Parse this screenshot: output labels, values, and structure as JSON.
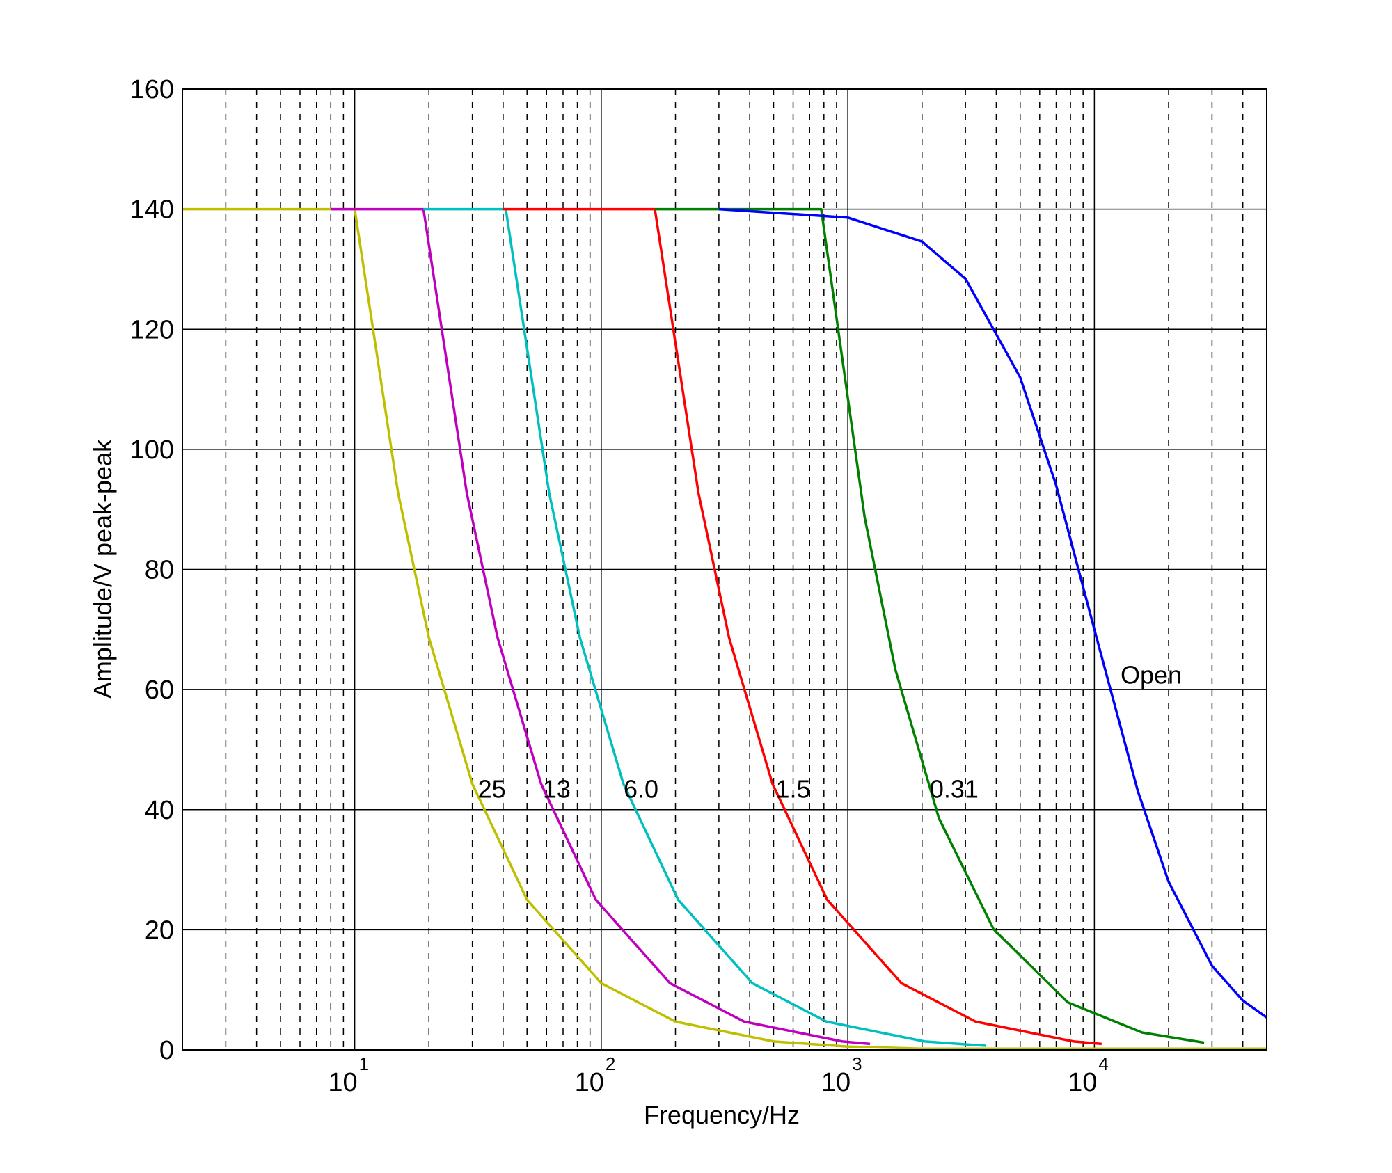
{
  "chart_data": {
    "type": "line",
    "title": "",
    "xlabel": "Frequency/Hz",
    "ylabel": "Amplitude/V peak-peak",
    "xscale": "log",
    "xlim": [
      2,
      50000
    ],
    "ylim": [
      0,
      160
    ],
    "yticks": [
      0,
      20,
      40,
      60,
      80,
      100,
      120,
      140,
      160
    ],
    "xticks": [
      {
        "value": 10,
        "base": "10",
        "exp": "1"
      },
      {
        "value": 100,
        "base": "10",
        "exp": "2"
      },
      {
        "value": 1000,
        "base": "10",
        "exp": "3"
      },
      {
        "value": 10000,
        "base": "10",
        "exp": "4"
      }
    ],
    "grid": {
      "major": "solid",
      "minor_x": "dashed"
    },
    "series": [
      {
        "label": "25",
        "color": "#bfbf00",
        "x": [
          2,
          10,
          15,
          20,
          30,
          50,
          100,
          200,
          500,
          1000,
          2000,
          50000
        ],
        "y": [
          140,
          140,
          92.7,
          68.6,
          44.3,
          25.0,
          11.1,
          4.7,
          1.4,
          0.56,
          0.21,
          0.2
        ]
      },
      {
        "label": "13",
        "color": "#bf00bf",
        "x": [
          8,
          19,
          28.5,
          38,
          57,
          95,
          190,
          380,
          950,
          1230
        ],
        "y": [
          140,
          140,
          92.7,
          68.6,
          44.3,
          25.0,
          11.1,
          4.7,
          1.4,
          1.0
        ]
      },
      {
        "label": "6.0",
        "color": "#00bfbf",
        "x": [
          19,
          41,
          61.5,
          82,
          123,
          205,
          410,
          820,
          2050,
          3640
        ],
        "y": [
          140,
          140,
          92.7,
          68.6,
          44.3,
          25.0,
          11.1,
          4.7,
          1.4,
          0.7
        ]
      },
      {
        "label": "1.5",
        "color": "#ff0000",
        "x": [
          40,
          165,
          248,
          330,
          495,
          825,
          1650,
          3300,
          8250,
          10700
        ],
        "y": [
          140,
          140,
          92.7,
          68.6,
          44.3,
          25.0,
          11.1,
          4.7,
          1.4,
          1.0
        ]
      },
      {
        "label": "0.31",
        "color": "#008000",
        "x": [
          165,
          780,
          1170,
          1560,
          2340,
          3900,
          7800,
          15600,
          27900
        ],
        "y": [
          140,
          140,
          88.7,
          63.3,
          38.6,
          20.1,
          7.9,
          2.9,
          1.2
        ]
      },
      {
        "label": "Open",
        "color": "#0000ff",
        "x": [
          300,
          1000,
          2000,
          3000,
          5000,
          7000,
          10000,
          15000,
          20000,
          30000,
          40000,
          50000
        ],
        "y": [
          140,
          138.6,
          134.6,
          128.4,
          112,
          94,
          70,
          43.1,
          28,
          14,
          8.2,
          5.4
        ]
      }
    ],
    "annotations": [
      {
        "text": "25",
        "x": 36,
        "y": 42
      },
      {
        "text": "13",
        "x": 66,
        "y": 42
      },
      {
        "text": "6.0",
        "x": 145,
        "y": 42
      },
      {
        "text": "1.5",
        "x": 600,
        "y": 42
      },
      {
        "text": "0.31",
        "x": 2700,
        "y": 42
      },
      {
        "text": "Open",
        "x": 17000,
        "y": 61
      }
    ]
  }
}
